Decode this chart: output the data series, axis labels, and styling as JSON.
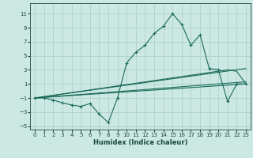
{
  "background_color": "#cce8e2",
  "grid_color": "#aaccca",
  "line_color": "#1a6b5a",
  "xlabel": "Humidex (Indice chaleur)",
  "xlim": [
    -0.5,
    23.5
  ],
  "ylim": [
    -5.5,
    12.5
  ],
  "xticks": [
    0,
    1,
    2,
    3,
    4,
    5,
    6,
    7,
    8,
    9,
    10,
    11,
    12,
    13,
    14,
    15,
    16,
    17,
    18,
    19,
    20,
    21,
    22,
    23
  ],
  "yticks": [
    -5,
    -3,
    -1,
    1,
    3,
    5,
    7,
    9,
    11
  ],
  "series1_x": [
    0,
    1,
    2,
    3,
    4,
    5,
    6,
    7,
    8,
    9,
    10,
    11,
    12,
    13,
    14,
    15,
    16,
    17,
    18,
    19,
    20,
    21,
    22,
    23
  ],
  "series1_y": [
    -1,
    -1,
    -1.3,
    -1.7,
    -2.0,
    -2.2,
    -1.8,
    -3.3,
    -4.5,
    -1,
    4,
    5.5,
    6.5,
    8.2,
    9.2,
    11,
    9.5,
    6.5,
    8,
    3.2,
    3,
    -1.5,
    1.0,
    1.0
  ],
  "series2_x": [
    0,
    23
  ],
  "series2_y": [
    -1,
    1.0
  ],
  "series3_x": [
    0,
    23
  ],
  "series3_y": [
    -1,
    1.3
  ],
  "series4_x": [
    0,
    23
  ],
  "series4_y": [
    -1,
    3.2
  ],
  "series5_x": [
    0,
    21,
    22,
    23
  ],
  "series5_y": [
    -1,
    3.0,
    2.8,
    1.0
  ]
}
